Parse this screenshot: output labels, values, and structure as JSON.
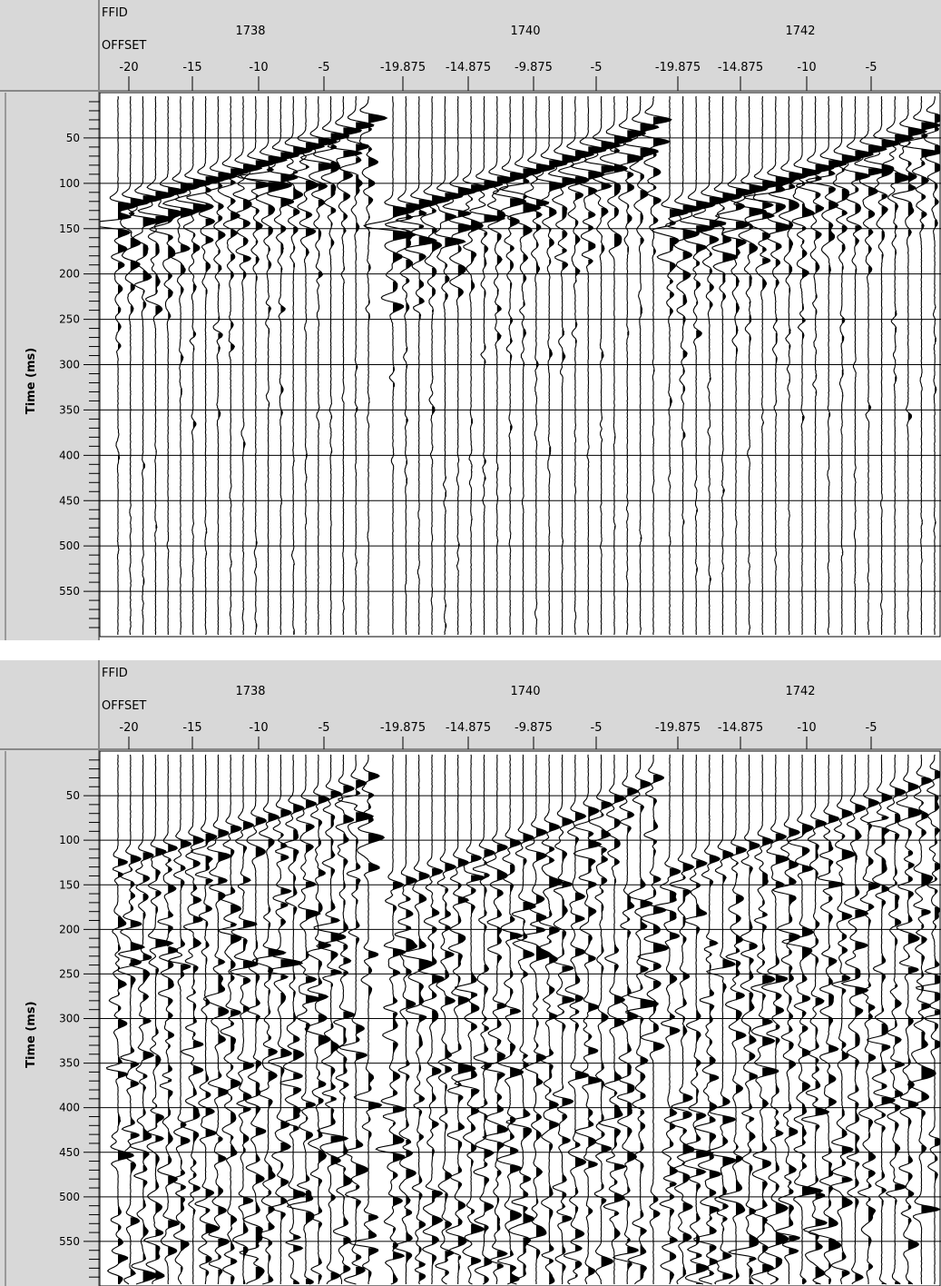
{
  "chart_data": [
    {
      "type": "seismic-wiggle",
      "header_labels": {
        "ffid": "FFID",
        "offset": "OFFSET"
      },
      "ylabel": "Time (ms)",
      "ylim": [
        0,
        600
      ],
      "y_ticks": [
        50,
        100,
        150,
        200,
        250,
        300,
        350,
        400,
        450,
        500,
        550
      ],
      "grid": true,
      "gathers": [
        {
          "ffid": "1738",
          "offset_labels": [
            "-20",
            "-15",
            "-10",
            "-5"
          ],
          "trace_offsets": [
            -21,
            -20,
            -19,
            -18,
            -17,
            -16,
            -15,
            -14,
            -13,
            -12,
            -11,
            -10,
            -9,
            -8,
            -7,
            -6,
            -5,
            -4,
            -3,
            -2,
            -1
          ],
          "first_break_ms": [
            125,
            121,
            117,
            113,
            109,
            104,
            100,
            96,
            92,
            87,
            83,
            78,
            74,
            69,
            64,
            59,
            54,
            48,
            42,
            36,
            28
          ]
        },
        {
          "ffid": "1740",
          "offset_labels": [
            "-19.875",
            "-14.875",
            "-9.875",
            "-5"
          ],
          "trace_offsets": [
            -20.875,
            -19.875,
            -18.875,
            -17.875,
            -16.875,
            -15.875,
            -14.875,
            -13.875,
            -12.875,
            -11.875,
            -10.875,
            -9.875,
            -8.875,
            -7.875,
            -6.875,
            -5.875,
            -5,
            -4,
            -3,
            -2,
            -1
          ],
          "first_break_ms": [
            130,
            126,
            122,
            118,
            114,
            109,
            105,
            101,
            96,
            92,
            87,
            83,
            78,
            73,
            68,
            63,
            58,
            52,
            45,
            38,
            30
          ]
        },
        {
          "ffid": "1742",
          "offset_labels": [
            "-19.875",
            "-14.875",
            "-10",
            "-5"
          ],
          "trace_offsets": [
            -20.875,
            -19.875,
            -18.875,
            -17.875,
            -16.875,
            -15.875,
            -14.875,
            -13.875,
            -12.875,
            -11.875,
            -11,
            -10,
            -9,
            -8,
            -7,
            -6,
            -5,
            -4,
            -3,
            -2,
            -1
          ],
          "first_break_ms": [
            132,
            128,
            124,
            119,
            115,
            110,
            106,
            101,
            97,
            92,
            88,
            83,
            78,
            73,
            68,
            62,
            56,
            50,
            43,
            36,
            28
          ]
        }
      ],
      "amplitude_decay": "strong"
    },
    {
      "type": "seismic-wiggle",
      "header_labels": {
        "ffid": "FFID",
        "offset": "OFFSET"
      },
      "ylabel": "Time (ms)",
      "ylim": [
        0,
        600
      ],
      "y_ticks": [
        50,
        100,
        150,
        200,
        250,
        300,
        350,
        400,
        450,
        500,
        550
      ],
      "grid": true,
      "gathers": [
        {
          "ffid": "1738",
          "offset_labels": [
            "-20",
            "-15",
            "-10",
            "-5"
          ],
          "trace_offsets": [
            -21,
            -20,
            -19,
            -18,
            -17,
            -16,
            -15,
            -14,
            -13,
            -12,
            -11,
            -10,
            -9,
            -8,
            -7,
            -6,
            -5,
            -4,
            -3,
            -2,
            -1
          ],
          "first_break_ms": [
            125,
            121,
            117,
            113,
            109,
            104,
            100,
            96,
            92,
            87,
            83,
            78,
            74,
            69,
            64,
            59,
            54,
            48,
            42,
            36,
            28
          ]
        },
        {
          "ffid": "1740",
          "offset_labels": [
            "-19.875",
            "-14.875",
            "-9.875",
            "-5"
          ],
          "trace_offsets": [
            -20.875,
            -19.875,
            -18.875,
            -17.875,
            -16.875,
            -15.875,
            -14.875,
            -13.875,
            -12.875,
            -11.875,
            -10.875,
            -9.875,
            -8.875,
            -7.875,
            -6.875,
            -5.875,
            -5,
            -4,
            -3,
            -2,
            -1
          ],
          "first_break_ms": [
            150,
            145,
            140,
            135,
            130,
            125,
            120,
            114,
            108,
            103,
            97,
            91,
            85,
            79,
            73,
            67,
            60,
            53,
            45,
            37,
            30
          ]
        },
        {
          "ffid": "1742",
          "offset_labels": [
            "-19.875",
            "-14.875",
            "-10",
            "-5"
          ],
          "trace_offsets": [
            -20.875,
            -19.875,
            -18.875,
            -17.875,
            -16.875,
            -15.875,
            -14.875,
            -13.875,
            -12.875,
            -11.875,
            -11,
            -10,
            -9,
            -8,
            -7,
            -6,
            -5,
            -4,
            -3,
            -2,
            -1
          ],
          "first_break_ms": [
            135,
            130,
            126,
            121,
            116,
            111,
            106,
            101,
            96,
            91,
            86,
            81,
            76,
            70,
            64,
            58,
            52,
            46,
            40,
            33,
            26
          ]
        }
      ],
      "amplitude_decay": "none"
    }
  ]
}
